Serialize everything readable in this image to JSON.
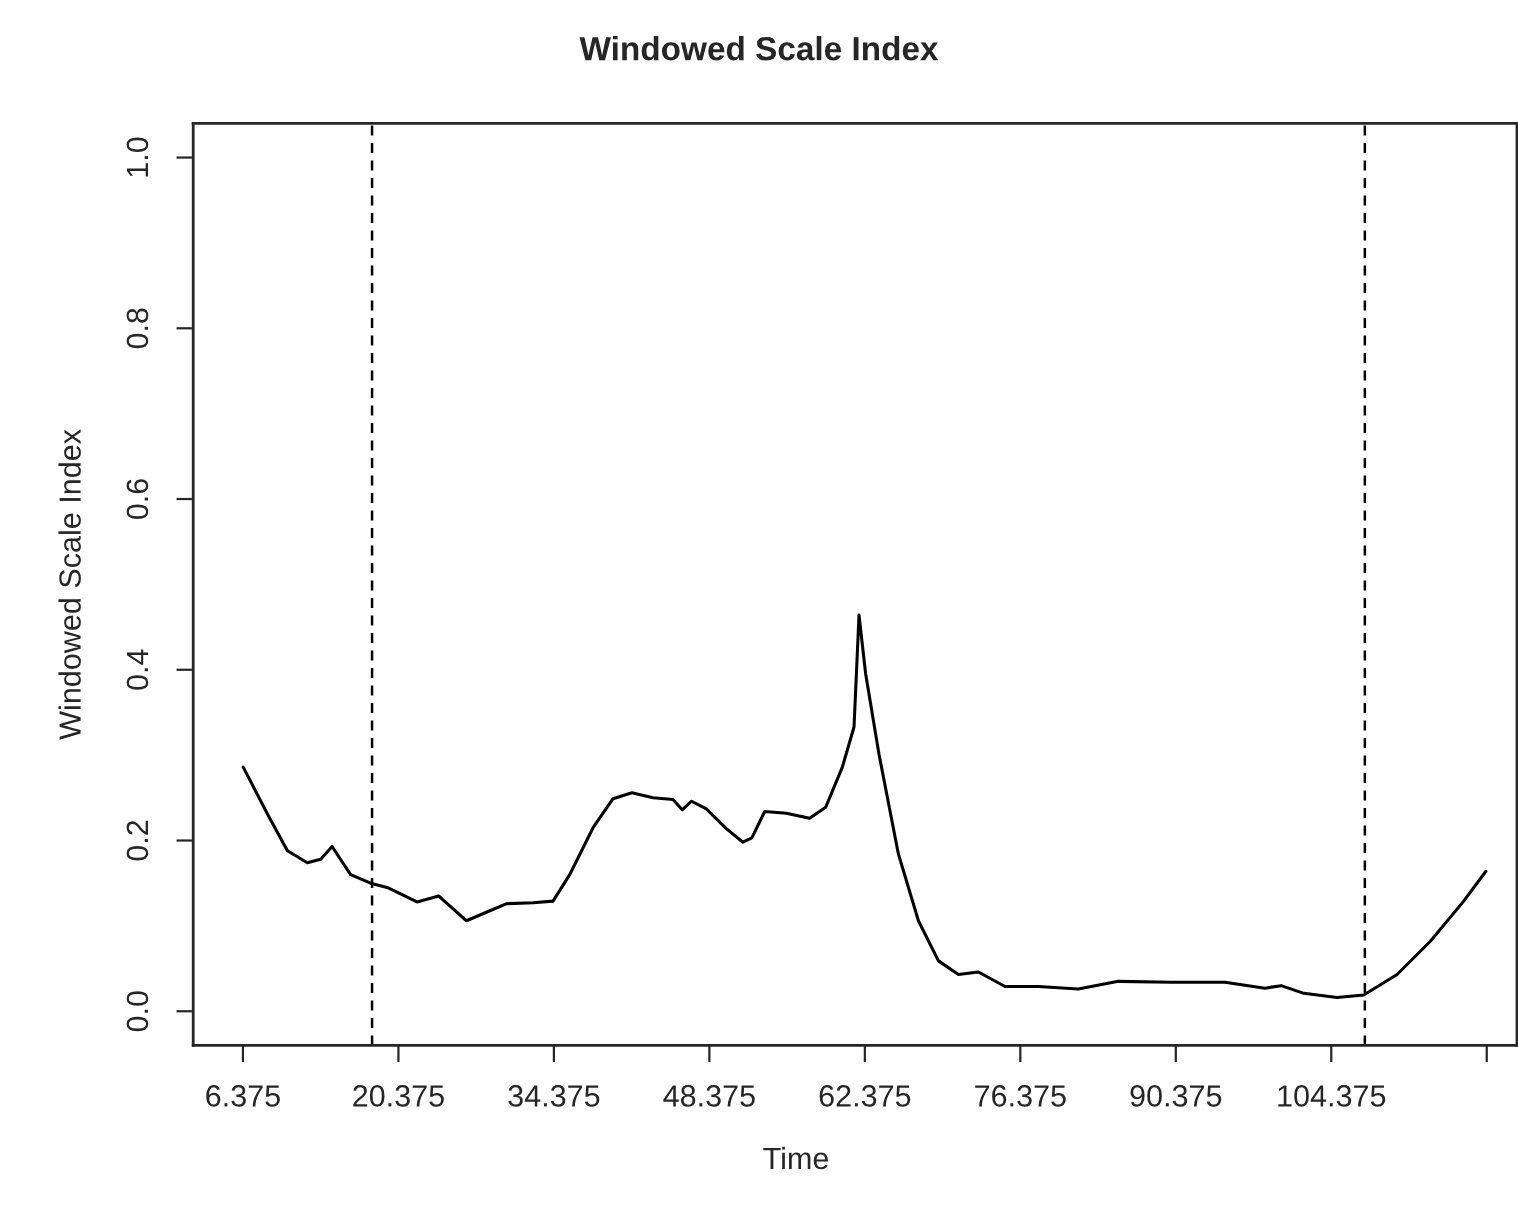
{
  "chart_data": {
    "type": "line",
    "title": "Windowed Scale Index",
    "xlabel": "Time",
    "ylabel": "Windowed Scale Index",
    "series": [
      {
        "color": "#000000",
        "x": [
          6.4,
          8.58,
          10.38,
          12.17,
          13.38,
          14.4,
          16.07,
          17.87,
          19.36,
          22.05,
          24.0,
          24.87,
          26.5,
          28.3,
          30.13,
          32.5,
          34.3,
          35.8,
          37.9,
          39.7,
          41.4,
          43.3,
          45.1,
          45.93,
          46.77,
          48.1,
          49.9,
          51.4,
          52.2,
          53.36,
          55.3,
          57.4,
          58.85,
          60.35,
          61.4,
          61.85,
          62.45,
          63.65,
          65.4,
          67.2,
          69.0,
          70.8,
          72.6,
          75.0,
          78.0,
          81.6,
          85.2,
          89.98,
          94.8,
          98.4,
          99.86,
          101.9,
          104.9,
          107.3,
          110.3,
          113.3,
          116.3,
          118.3
        ],
        "values": [
          0.286,
          0.231,
          0.188,
          0.174,
          0.178,
          0.193,
          0.16,
          0.15,
          0.145,
          0.128,
          0.135,
          0.125,
          0.106,
          0.116,
          0.126,
          0.127,
          0.129,
          0.16,
          0.215,
          0.249,
          0.256,
          0.25,
          0.248,
          0.236,
          0.246,
          0.237,
          0.214,
          0.198,
          0.203,
          0.234,
          0.232,
          0.226,
          0.239,
          0.286,
          0.333,
          0.464,
          0.395,
          0.301,
          0.184,
          0.106,
          0.059,
          0.043,
          0.046,
          0.029,
          0.029,
          0.026,
          0.035,
          0.034,
          0.034,
          0.027,
          0.03,
          0.021,
          0.016,
          0.019,
          0.043,
          0.082,
          0.129,
          0.164
        ]
      }
    ],
    "xlim": [
      1.895,
      121.1
    ],
    "ylim": [
      -0.04,
      1.04
    ],
    "xticks": [
      6.375,
      20.375,
      34.375,
      48.375,
      62.375,
      76.375,
      90.375,
      104.375,
      {
        "value": 118.375,
        "label": null
      }
    ],
    "yticks": [
      {
        "value": 0,
        "label": "0.0"
      },
      {
        "value": 0.2,
        "label": "0.2"
      },
      {
        "value": 0.4,
        "label": "0.4"
      },
      {
        "value": 0.6,
        "label": "0.6"
      },
      {
        "value": 0.8,
        "label": "0.8"
      },
      {
        "value": 1,
        "label": "1.0"
      }
    ],
    "ref_lines": [
      {
        "axis": "x",
        "value": 18.0,
        "color": "#000000",
        "line_style": "dashed"
      },
      {
        "axis": "x",
        "value": 107.4,
        "color": "#000000",
        "line_style": "dashed"
      }
    ],
    "grid": false
  }
}
